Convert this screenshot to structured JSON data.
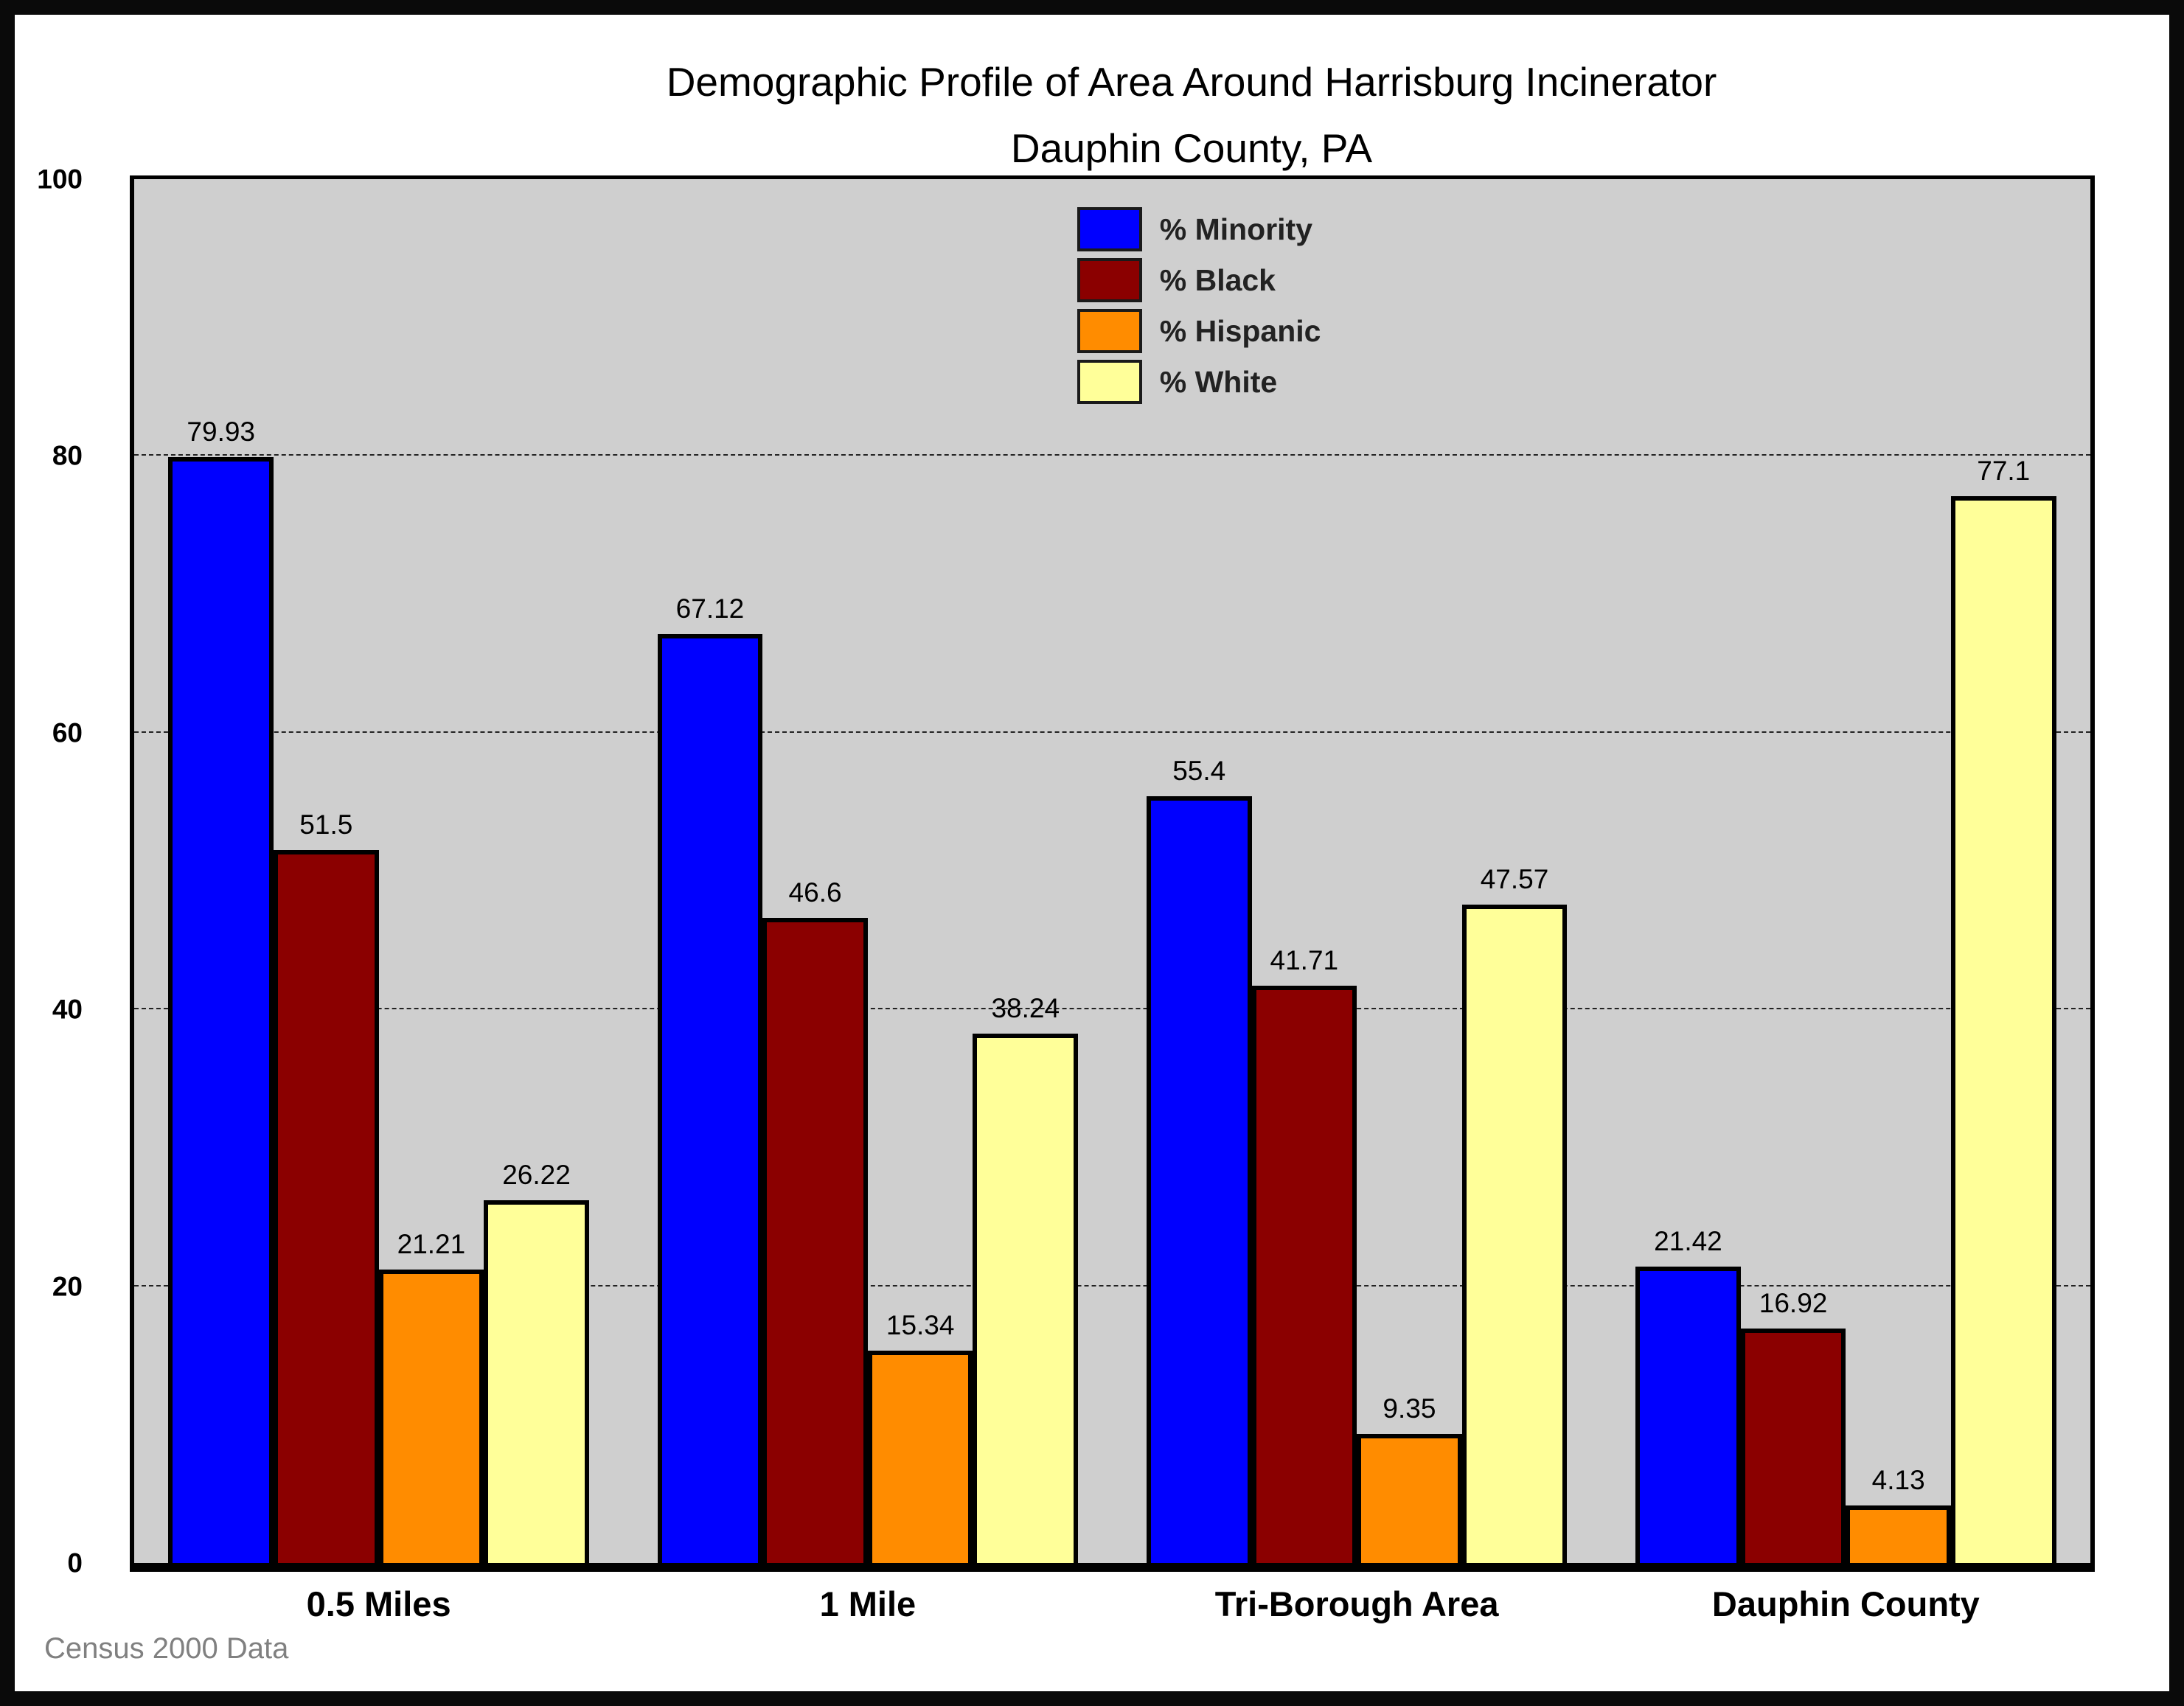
{
  "chart_data": {
    "type": "bar",
    "title": "Demographic Profile of Area Around Harrisburg Incinerator",
    "subtitle": "Dauphin County, PA",
    "categories": [
      "0.5 Miles",
      "1 Mile",
      "Tri-Borough Area",
      "Dauphin County"
    ],
    "series": [
      {
        "name": "% Minority",
        "color": "#0000FF",
        "values": [
          79.93,
          67.12,
          55.4,
          21.42
        ]
      },
      {
        "name": "% Black",
        "color": "#8B0000",
        "values": [
          51.5,
          46.6,
          41.71,
          16.92
        ]
      },
      {
        "name": "% Hispanic",
        "color": "#FF8C00",
        "values": [
          21.21,
          15.34,
          9.35,
          4.13
        ]
      },
      {
        "name": "% White",
        "color": "#FFFF99",
        "values": [
          26.22,
          38.24,
          47.57,
          77.1
        ]
      }
    ],
    "xlabel": "",
    "ylabel": "",
    "ylim": [
      0,
      100
    ],
    "yticks": [
      0,
      20,
      40,
      60,
      80,
      100
    ],
    "gridlines_at": [
      20,
      40,
      60,
      80
    ],
    "grid": "horizontal-dashed",
    "legend_position": "inside-top-center",
    "plot_background": "#CFCFCF",
    "footnote": "Census 2000 Data"
  }
}
